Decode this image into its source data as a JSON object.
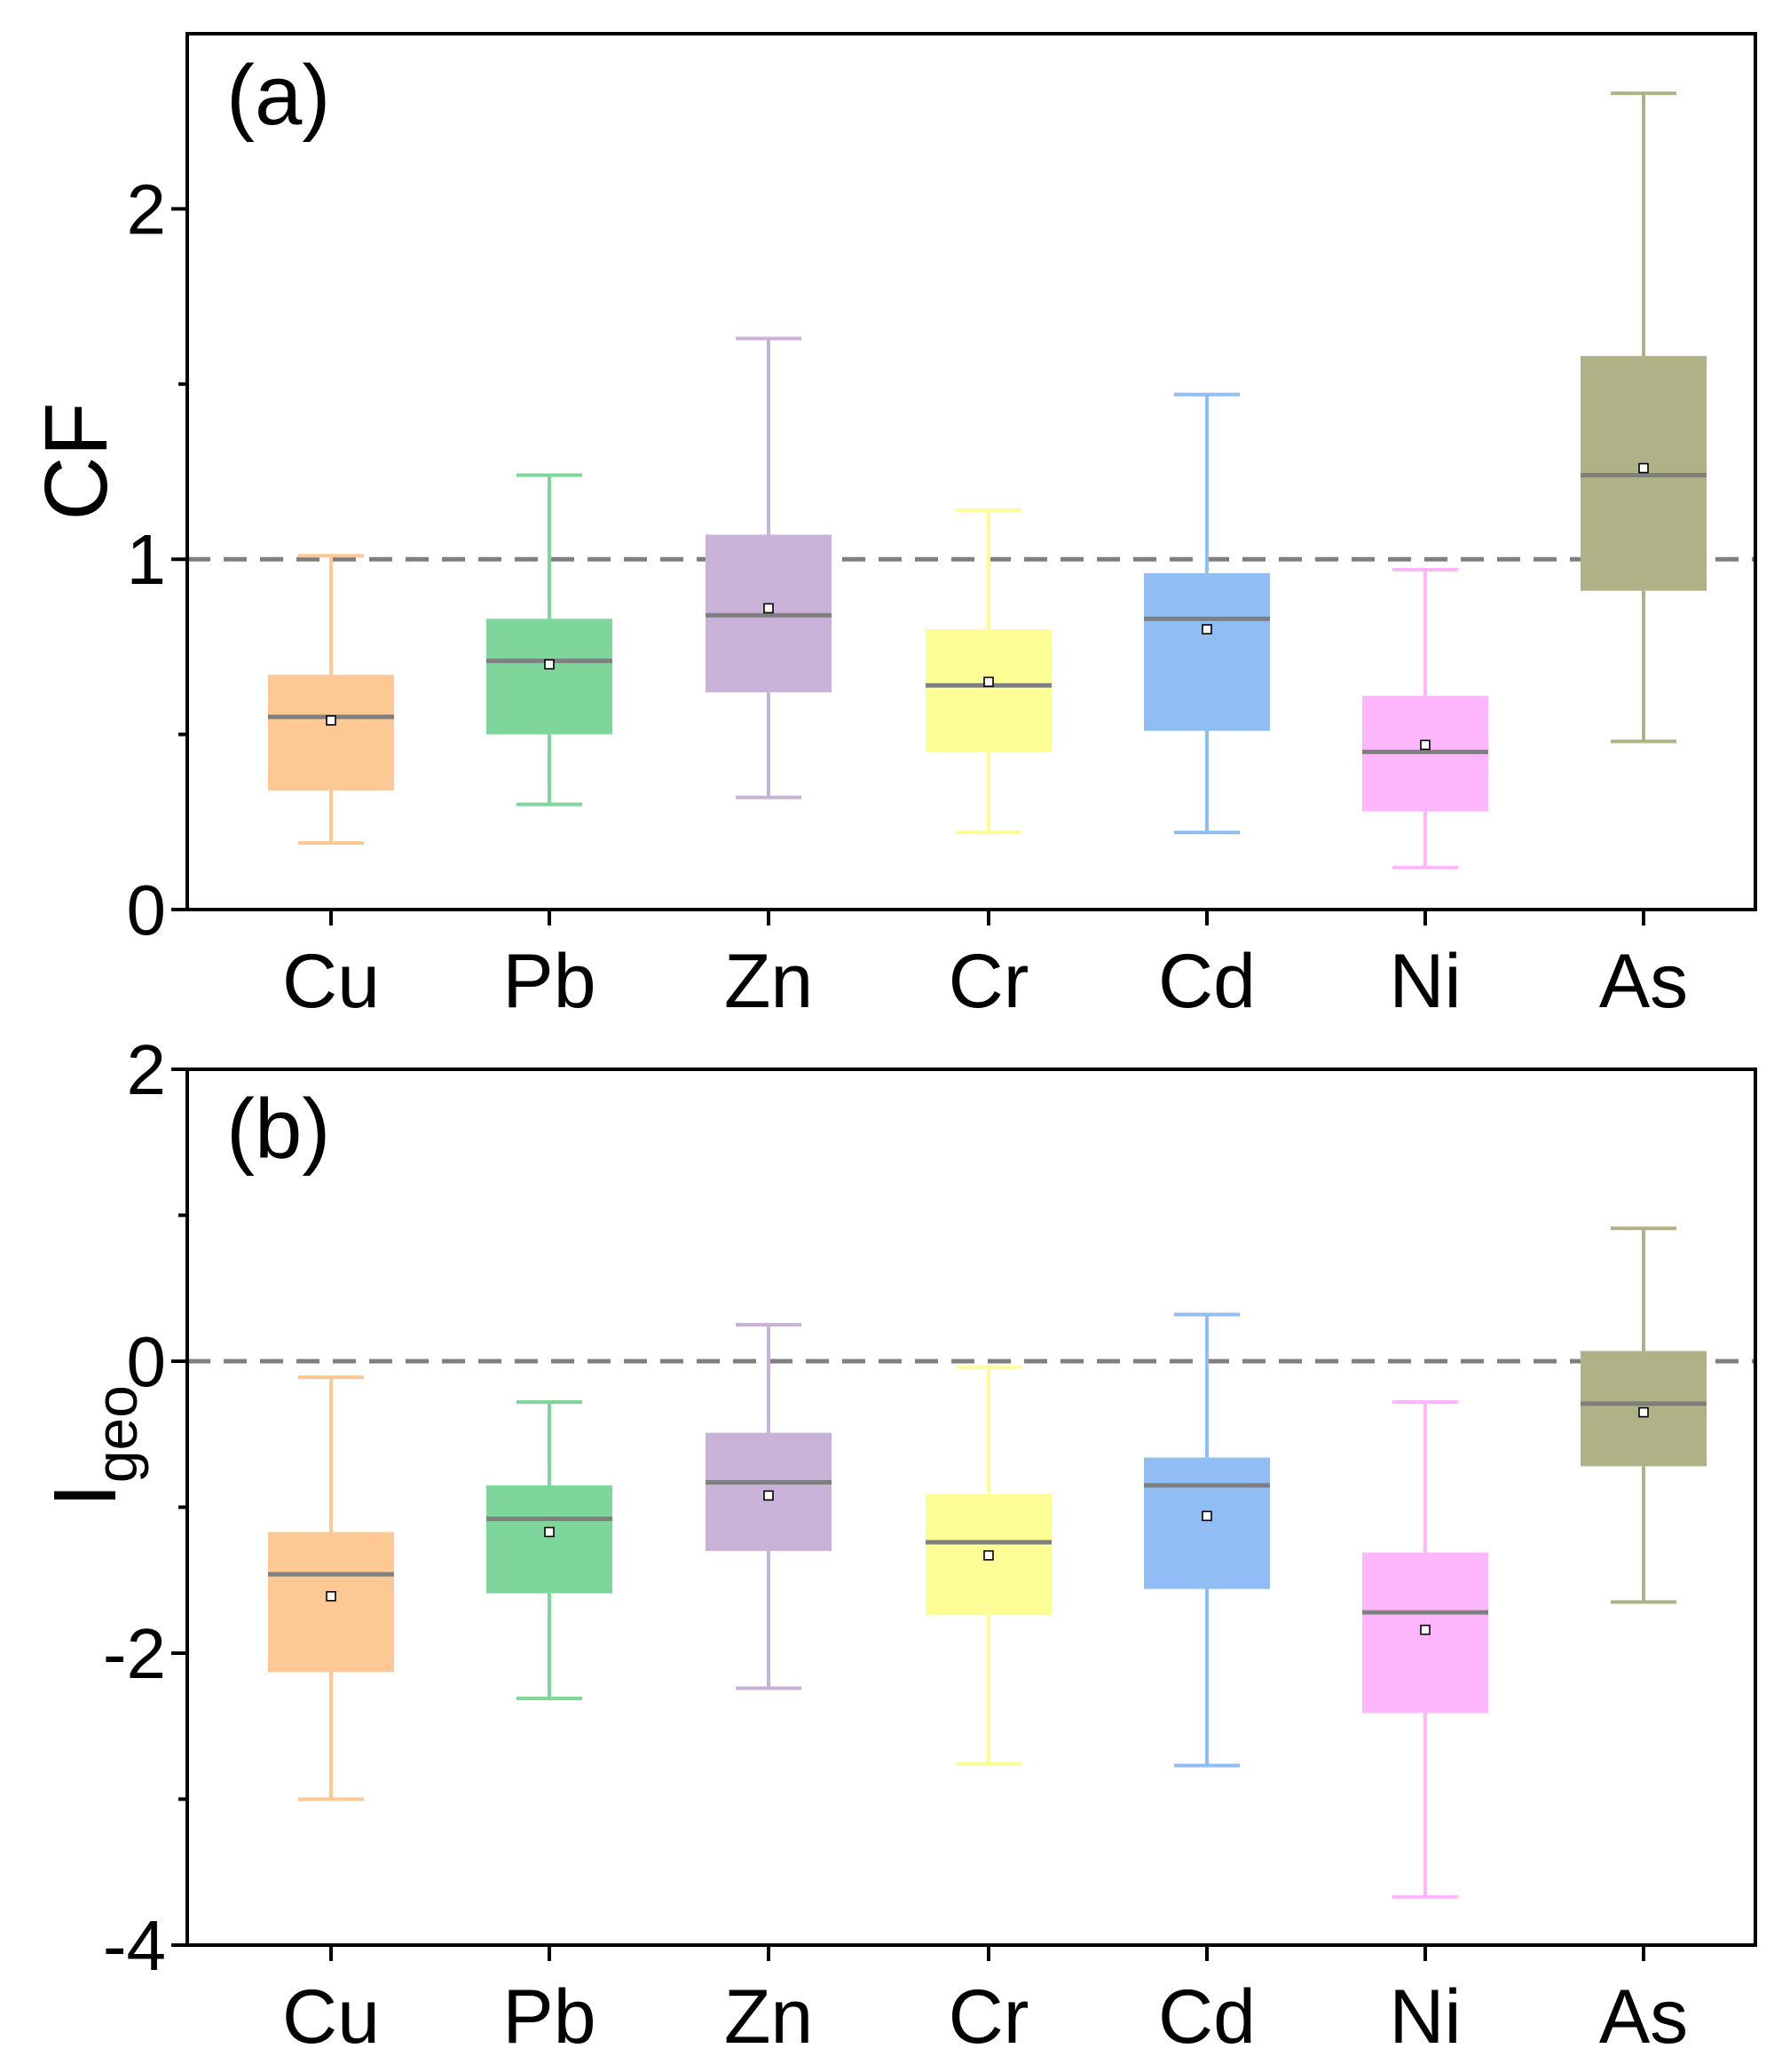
{
  "chart_data": [
    {
      "type": "box",
      "panel_label": "(a)",
      "ylabel": "CF",
      "ylim": [
        0,
        2.5
      ],
      "yticks": [
        0,
        1,
        2
      ],
      "ytick_labels": [
        "0",
        "1",
        "2"
      ],
      "minor_yticks": [
        0.5,
        1.5
      ],
      "reference_line": 1,
      "categories": [
        "Cu",
        "Pb",
        "Zn",
        "Cr",
        "Cd",
        "Ni",
        "As"
      ],
      "boxes": [
        {
          "min": 0.19,
          "q1": 0.34,
          "median": 0.55,
          "mean": 0.54,
          "q3": 0.67,
          "max": 1.01
        },
        {
          "min": 0.3,
          "q1": 0.5,
          "median": 0.71,
          "mean": 0.7,
          "q3": 0.83,
          "max": 1.24
        },
        {
          "min": 0.32,
          "q1": 0.62,
          "median": 0.84,
          "mean": 0.86,
          "q3": 1.07,
          "max": 1.63
        },
        {
          "min": 0.22,
          "q1": 0.45,
          "median": 0.64,
          "mean": 0.65,
          "q3": 0.8,
          "max": 1.14
        },
        {
          "min": 0.22,
          "q1": 0.51,
          "median": 0.83,
          "mean": 0.8,
          "q3": 0.96,
          "max": 1.47
        },
        {
          "min": 0.12,
          "q1": 0.28,
          "median": 0.45,
          "mean": 0.47,
          "q3": 0.61,
          "max": 0.97
        },
        {
          "min": 0.48,
          "q1": 0.91,
          "median": 1.24,
          "mean": 1.26,
          "q3": 1.58,
          "max": 2.33
        }
      ]
    },
    {
      "type": "box",
      "panel_label": "(b)",
      "ylabel": "I",
      "ylabel_sub": "geo",
      "ylim": [
        -4,
        2
      ],
      "yticks": [
        -4,
        -2,
        0,
        2
      ],
      "ytick_labels": [
        "-4",
        "-2",
        "0",
        "2"
      ],
      "minor_yticks": [
        -3,
        -1,
        1
      ],
      "reference_line": 0,
      "categories": [
        "Cu",
        "Pb",
        "Zn",
        "Cr",
        "Cd",
        "Ni",
        "As"
      ],
      "boxes": [
        {
          "min": -3.0,
          "q1": -2.13,
          "median": -1.46,
          "mean": -1.61,
          "q3": -1.17,
          "max": -0.11
        },
        {
          "min": -2.31,
          "q1": -1.59,
          "median": -1.08,
          "mean": -1.17,
          "q3": -0.85,
          "max": -0.28
        },
        {
          "min": -2.24,
          "q1": -1.3,
          "median": -0.83,
          "mean": -0.92,
          "q3": -0.49,
          "max": 0.25
        },
        {
          "min": -2.76,
          "q1": -1.74,
          "median": -1.24,
          "mean": -1.33,
          "q3": -0.91,
          "max": -0.04
        },
        {
          "min": -2.77,
          "q1": -1.56,
          "median": -0.85,
          "mean": -1.06,
          "q3": -0.66,
          "max": 0.32
        },
        {
          "min": -3.67,
          "q1": -2.41,
          "median": -1.72,
          "mean": -1.84,
          "q3": -1.31,
          "max": -0.28
        },
        {
          "min": -1.65,
          "q1": -0.72,
          "median": -0.29,
          "mean": -0.35,
          "q3": 0.07,
          "max": 0.91
        }
      ]
    }
  ],
  "colors": {
    "Cu": "#fdc893",
    "Pb": "#7ed69a",
    "Zn": "#c8b2d8",
    "Cr": "#fdfd96",
    "Cd": "#8fbdf4",
    "Ni": "#fdb6fb",
    "As": "#afb287",
    "median_line": "#7f7f7f",
    "reference_line": "#7f7f7f"
  }
}
